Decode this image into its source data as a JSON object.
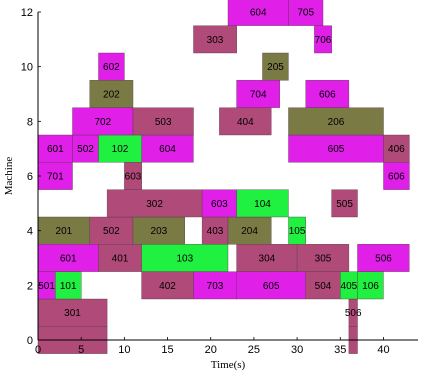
{
  "chart_data": {
    "type": "gantt",
    "xlabel": "Time(s)",
    "ylabel": "Machine",
    "xlim": [
      0,
      44
    ],
    "ylim": [
      0,
      12
    ],
    "xticks": [
      0,
      5,
      10,
      15,
      20,
      25,
      30,
      35,
      40
    ],
    "yticks": [
      0,
      2,
      4,
      6,
      8,
      10,
      12
    ],
    "grid": false,
    "colors": {
      "magenta": "#e020e8",
      "rose": "#b04a78",
      "olive": "#7a7a45",
      "green": "#20f040"
    },
    "tasks": [
      {
        "label": "",
        "machine": 0,
        "start": 0,
        "end": 8,
        "color": "rose"
      },
      {
        "label": "",
        "machine": 0,
        "start": 36,
        "end": 37,
        "color": "rose"
      },
      {
        "label": "301",
        "machine": 1,
        "start": 0,
        "end": 8,
        "color": "rose"
      },
      {
        "label": "506",
        "machine": 1,
        "start": 36,
        "end": 37,
        "color": "rose"
      },
      {
        "label": "501",
        "machine": 2,
        "start": 0,
        "end": 2,
        "color": "magenta"
      },
      {
        "label": "101",
        "machine": 2,
        "start": 2,
        "end": 5,
        "color": "green"
      },
      {
        "label": "402",
        "machine": 2,
        "start": 12,
        "end": 18,
        "color": "rose"
      },
      {
        "label": "703",
        "machine": 2,
        "start": 18,
        "end": 23,
        "color": "magenta"
      },
      {
        "label": "605",
        "machine": 2,
        "start": 23,
        "end": 31,
        "color": "magenta"
      },
      {
        "label": "504",
        "machine": 2,
        "start": 31,
        "end": 35,
        "color": "rose"
      },
      {
        "label": "405",
        "machine": 2,
        "start": 35,
        "end": 37,
        "color": "green"
      },
      {
        "label": "106",
        "machine": 2,
        "start": 37,
        "end": 40,
        "color": "green"
      },
      {
        "label": "601",
        "machine": 3,
        "start": 0,
        "end": 7,
        "color": "magenta"
      },
      {
        "label": "401",
        "machine": 3,
        "start": 7,
        "end": 12,
        "color": "rose"
      },
      {
        "label": "103",
        "machine": 3,
        "start": 12,
        "end": 22,
        "color": "green"
      },
      {
        "label": "304",
        "machine": 3,
        "start": 23,
        "end": 30,
        "color": "rose"
      },
      {
        "label": "305",
        "machine": 3,
        "start": 30,
        "end": 36,
        "color": "rose"
      },
      {
        "label": "506",
        "machine": 3,
        "start": 37,
        "end": 43,
        "color": "magenta"
      },
      {
        "label": "201",
        "machine": 4,
        "start": 0,
        "end": 6,
        "color": "olive"
      },
      {
        "label": "502",
        "machine": 4,
        "start": 6,
        "end": 11,
        "color": "rose"
      },
      {
        "label": "203",
        "machine": 4,
        "start": 11,
        "end": 17,
        "color": "olive"
      },
      {
        "label": "403",
        "machine": 4,
        "start": 19,
        "end": 22,
        "color": "rose"
      },
      {
        "label": "204",
        "machine": 4,
        "start": 22,
        "end": 27,
        "color": "olive"
      },
      {
        "label": "105",
        "machine": 4,
        "start": 29,
        "end": 31,
        "color": "green"
      },
      {
        "label": "302",
        "machine": 5,
        "start": 8,
        "end": 19,
        "color": "rose"
      },
      {
        "label": "603",
        "machine": 5,
        "start": 19,
        "end": 23,
        "color": "magenta"
      },
      {
        "label": "104",
        "machine": 5,
        "start": 23,
        "end": 29,
        "color": "green"
      },
      {
        "label": "505",
        "machine": 5,
        "start": 34,
        "end": 37,
        "color": "rose"
      },
      {
        "label": "701",
        "machine": 6,
        "start": 0,
        "end": 4,
        "color": "magenta"
      },
      {
        "label": "603",
        "machine": 6,
        "start": 10,
        "end": 12,
        "color": "rose"
      },
      {
        "label": "606",
        "machine": 6,
        "start": 40,
        "end": 43,
        "color": "magenta"
      },
      {
        "label": "601",
        "machine": 7,
        "start": 0,
        "end": 4,
        "color": "magenta"
      },
      {
        "label": "502",
        "machine": 7,
        "start": 4,
        "end": 7,
        "color": "magenta"
      },
      {
        "label": "102",
        "machine": 7,
        "start": 7,
        "end": 12,
        "color": "green"
      },
      {
        "label": "604",
        "machine": 7,
        "start": 12,
        "end": 18,
        "color": "magenta"
      },
      {
        "label": "605",
        "machine": 7,
        "start": 29,
        "end": 40,
        "color": "magenta"
      },
      {
        "label": "406",
        "machine": 7,
        "start": 40,
        "end": 43,
        "color": "rose"
      },
      {
        "label": "702",
        "machine": 8,
        "start": 4,
        "end": 11,
        "color": "magenta"
      },
      {
        "label": "503",
        "machine": 8,
        "start": 11,
        "end": 18,
        "color": "rose"
      },
      {
        "label": "404",
        "machine": 8,
        "start": 21,
        "end": 27,
        "color": "rose"
      },
      {
        "label": "206",
        "machine": 8,
        "start": 29,
        "end": 40,
        "color": "olive"
      },
      {
        "label": "202",
        "machine": 9,
        "start": 6,
        "end": 11,
        "color": "olive"
      },
      {
        "label": "704",
        "machine": 9,
        "start": 23,
        "end": 28,
        "color": "magenta"
      },
      {
        "label": "606",
        "machine": 9,
        "start": 31,
        "end": 36,
        "color": "magenta"
      },
      {
        "label": "602",
        "machine": 10,
        "start": 7,
        "end": 10,
        "color": "magenta"
      },
      {
        "label": "205",
        "machine": 10,
        "start": 26,
        "end": 29,
        "color": "olive"
      },
      {
        "label": "303",
        "machine": 11,
        "start": 18,
        "end": 23,
        "color": "rose"
      },
      {
        "label": "706",
        "machine": 11,
        "start": 32,
        "end": 34,
        "color": "magenta"
      },
      {
        "label": "604",
        "machine": 12,
        "start": 22,
        "end": 29,
        "color": "magenta"
      },
      {
        "label": "705",
        "machine": 12,
        "start": 29,
        "end": 33,
        "color": "magenta"
      }
    ]
  }
}
